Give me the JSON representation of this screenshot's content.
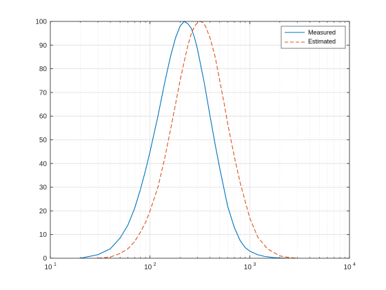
{
  "chart_data": {
    "type": "line",
    "title": "",
    "xlabel": "",
    "ylabel": "",
    "xscale": "log",
    "xlim": [
      10,
      10000
    ],
    "ylim": [
      0,
      100
    ],
    "x_ticks": [
      10,
      100,
      1000,
      10000
    ],
    "x_tick_labels": [
      {
        "base": "10",
        "exp": "1"
      },
      {
        "base": "10",
        "exp": "2"
      },
      {
        "base": "10",
        "exp": "3"
      },
      {
        "base": "10",
        "exp": "4"
      }
    ],
    "y_ticks": [
      0,
      10,
      20,
      30,
      40,
      50,
      60,
      70,
      80,
      90,
      100
    ],
    "y_tick_labels": [
      "0",
      "10",
      "20",
      "30",
      "40",
      "50",
      "60",
      "70",
      "80",
      "90",
      "100"
    ],
    "grid": true,
    "minor_grid": true,
    "legend": {
      "placement": "top-right"
    },
    "series": [
      {
        "name": "Measured",
        "color": "#0072BD",
        "style": "solid",
        "x": [
          20,
          30,
          40,
          50,
          60,
          70,
          80,
          90,
          100,
          120,
          140,
          160,
          180,
          200,
          220,
          240,
          260,
          280,
          300,
          350,
          400,
          450,
          500,
          600,
          700,
          800,
          900,
          1000,
          1200,
          1400,
          1700,
          2000,
          2500
        ],
        "y": [
          0,
          1.5,
          4,
          8.5,
          14,
          21,
          29,
          37,
          45,
          60,
          74,
          85,
          93,
          98,
          100,
          99,
          97,
          93,
          88,
          74,
          60,
          48,
          38,
          22,
          13,
          7.5,
          4.5,
          3,
          1.5,
          0.8,
          0.3,
          0.1,
          0
        ]
      },
      {
        "name": "Estimated",
        "color": "#D95319",
        "style": "dashed",
        "x": [
          30,
          40,
          50,
          60,
          70,
          80,
          90,
          100,
          120,
          140,
          160,
          180,
          200,
          220,
          240,
          260,
          280,
          300,
          320,
          340,
          360,
          400,
          450,
          500,
          550,
          600,
          700,
          800,
          900,
          1000,
          1200,
          1500,
          2000,
          2500,
          3000
        ],
        "y": [
          0,
          0.5,
          2,
          4,
          7,
          11,
          15,
          20,
          30,
          42,
          54,
          65,
          75,
          83,
          90,
          95,
          98,
          99.5,
          100,
          99.5,
          98,
          93,
          85,
          75,
          66,
          57,
          43,
          32,
          24,
          17,
          9,
          4,
          1,
          0.3,
          0
        ]
      }
    ]
  }
}
